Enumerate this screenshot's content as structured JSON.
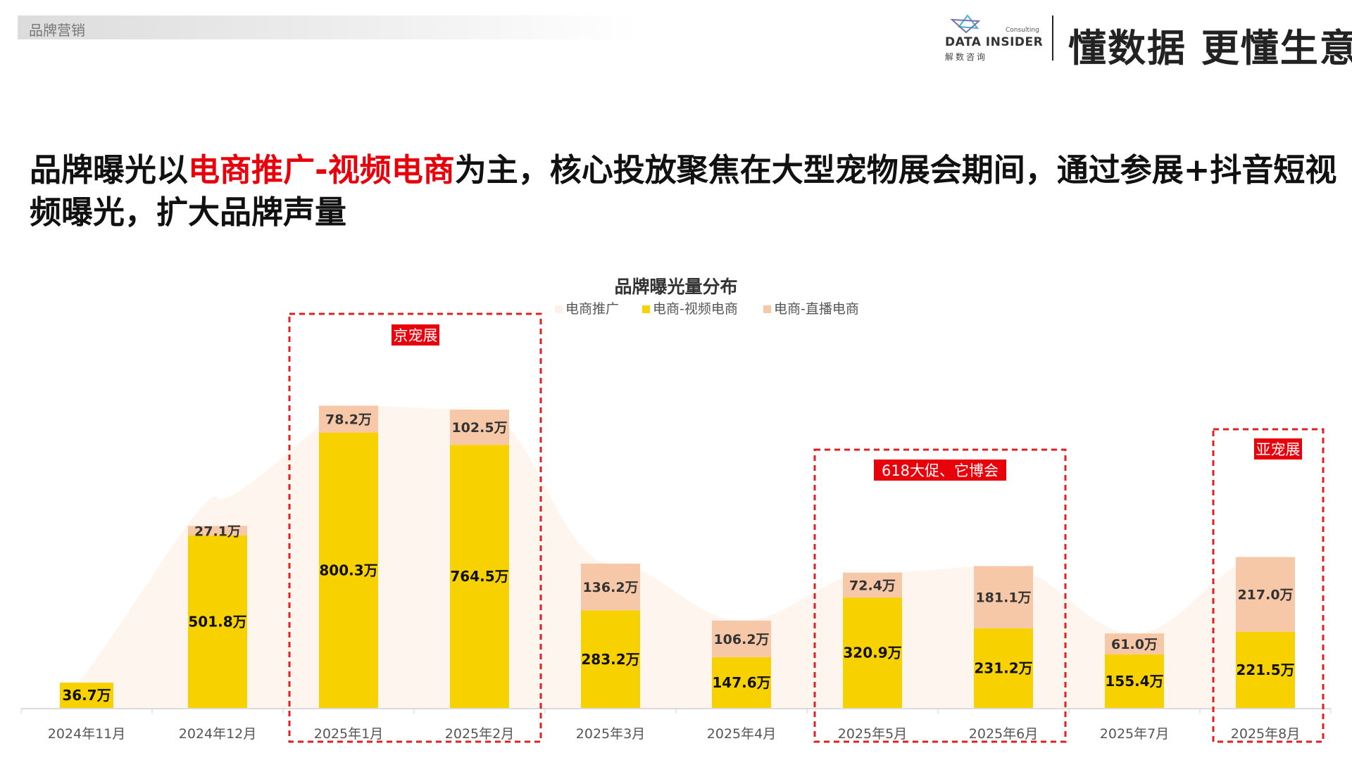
{
  "section_label": "品牌营销",
  "brand": {
    "logo_text": "DATA INSIDER",
    "logo_consulting": "Consulting",
    "logo_cn": "解数咨询",
    "slogan": "懂数据 更懂生意"
  },
  "headline": {
    "part1": "品牌曝光以",
    "highlight": "电商推广-视频电商",
    "part2": "为主，核心投放聚焦在大型宠物展会期间，通过参展+抖音短视频曝光，扩大品牌声量"
  },
  "colors": {
    "video_ecommerce": "#F8D200",
    "live_ecommerce": "#F6C8A8",
    "promo": "#FDF1E9",
    "highlight_red": "#E8000B",
    "box_red": "#E02020"
  },
  "chart_data": {
    "type": "bar",
    "stacked": true,
    "title": "品牌曝光量分布",
    "legend_position": "top-center",
    "categories": [
      "2024年11月",
      "2024年12月",
      "2025年1月",
      "2025年2月",
      "2025年3月",
      "2025年4月",
      "2025年5月",
      "2025年6月",
      "2025年7月",
      "2025年8月"
    ],
    "series": [
      {
        "name": "电商推广",
        "type": "area",
        "values": [
          null,
          null,
          null,
          null,
          null,
          null,
          null,
          null,
          null,
          null
        ]
      },
      {
        "name": "电商-视频电商",
        "values": [
          36.7,
          501.8,
          800.3,
          764.5,
          283.2,
          147.6,
          320.9,
          231.2,
          155.4,
          221.5
        ],
        "labels": [
          "36.7万",
          "501.8万",
          "800.3万",
          "764.5万",
          "283.2万",
          "147.6万",
          "320.9万",
          "231.2万",
          "155.4万",
          "221.5万"
        ]
      },
      {
        "name": "电商-直播电商",
        "values": [
          0,
          27.1,
          78.2,
          102.5,
          136.2,
          106.2,
          72.4,
          181.1,
          61.0,
          217.0
        ],
        "labels": [
          "",
          "27.1万",
          "78.2万",
          "102.5万",
          "136.2万",
          "106.2万",
          "72.4万",
          "181.1万",
          "61.0万",
          "217.0万"
        ]
      }
    ],
    "grid": false,
    "annotations": [
      {
        "label": "京宠展",
        "from": 2,
        "to": 3
      },
      {
        "label": "618大促、它博会",
        "from": 6,
        "to": 7
      },
      {
        "label": "亚宠展",
        "from": 9,
        "to": 9
      }
    ]
  }
}
